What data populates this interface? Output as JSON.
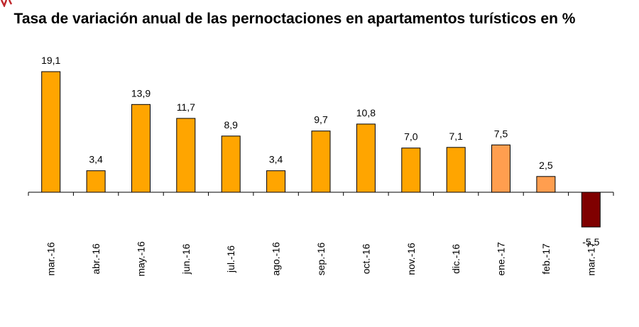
{
  "chart_data": {
    "type": "bar",
    "title": "Tasa de variación anual de las pernoctaciones en apartamentos turísticos en %",
    "categories": [
      "mar.-16",
      "abr.-16",
      "may.-16",
      "jun.-16",
      "jul.-16",
      "ago.-16",
      "sep.-16",
      "oct.-16",
      "nov.-16",
      "dic.-16",
      "ene.-17",
      "feb.-17",
      "mar.-17"
    ],
    "values": [
      19.1,
      3.4,
      13.9,
      11.7,
      8.9,
      3.4,
      9.7,
      10.8,
      7.0,
      7.1,
      7.5,
      2.5,
      -5.5
    ],
    "value_labels": [
      "19,1",
      "3,4",
      "13,9",
      "11,7",
      "8,9",
      "3,4",
      "9,7",
      "10,8",
      "7,0",
      "7,1",
      "7,5",
      "2,5",
      "-5,5"
    ],
    "colors": [
      "#FFA500",
      "#FFA500",
      "#FFA500",
      "#FFA500",
      "#FFA500",
      "#FFA500",
      "#FFA500",
      "#FFA500",
      "#FFA500",
      "#FFA500",
      "#FF9E4F",
      "#FF9E4F",
      "#7F0000"
    ],
    "bar_stroke": "#000000",
    "ylim": [
      -5.5,
      19.1
    ],
    "grid": false,
    "legend": "none"
  }
}
